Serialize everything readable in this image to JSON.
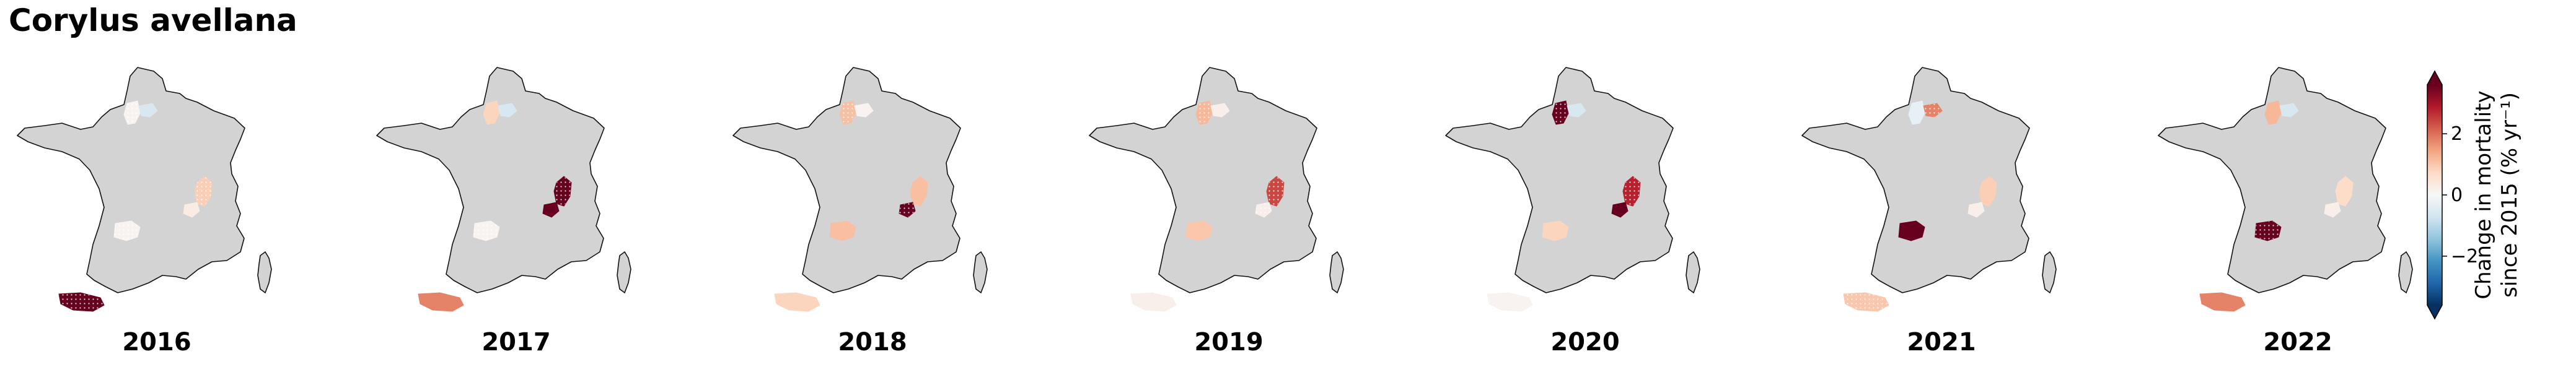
{
  "title": "Corylus avellana",
  "panels": [
    {
      "year": "2016",
      "regions": {
        "north": 0.1,
        "northeast": -0.6,
        "east": 0.9,
        "eastinner": 0.3,
        "center": 0.1,
        "southwest": 3.6
      },
      "hatched": [
        "north",
        "east",
        "center",
        "southwest"
      ]
    },
    {
      "year": "2017",
      "regions": {
        "north": 0.8,
        "northeast": -0.6,
        "east": 3.6,
        "eastinner": 3.6,
        "center": 0.1,
        "southwest": 1.8
      },
      "hatched": [
        "east",
        "center"
      ]
    },
    {
      "year": "2018",
      "regions": {
        "north": 1.1,
        "northeast": 0.1,
        "east": 1.1,
        "eastinner": 3.6,
        "center": 1.1,
        "southwest": 0.8
      },
      "hatched": [
        "north",
        "eastinner"
      ]
    },
    {
      "year": "2019",
      "regions": {
        "north": 1.2,
        "northeast": 0.2,
        "east": 2.4,
        "eastinner": 0.2,
        "center": 1.0,
        "southwest": 0.2
      },
      "hatched": [
        "north",
        "east",
        "eastinner"
      ]
    },
    {
      "year": "2020",
      "regions": {
        "north": 3.6,
        "northeast": -0.6,
        "east": 2.8,
        "eastinner": 3.6,
        "center": 0.8,
        "southwest": 0.1
      },
      "hatched": [
        "north",
        "east"
      ]
    },
    {
      "year": "2021",
      "regions": {
        "north": -0.3,
        "northeast": 1.8,
        "east": 0.9,
        "eastinner": 0.2,
        "center": 3.6,
        "southwest": 1.0
      },
      "hatched": [
        "northeast",
        "southwest"
      ]
    },
    {
      "year": "2022",
      "regions": {
        "north": 1.2,
        "northeast": -0.6,
        "east": 0.7,
        "eastinner": 0.2,
        "center": 3.6,
        "southwest": 1.8
      },
      "hatched": [
        "center"
      ]
    }
  ],
  "colorbar": {
    "ticks": [
      "2",
      "0",
      "−2"
    ],
    "label_line1": "Change in mortality",
    "label_line2": "since 2015 (% yr⁻¹)",
    "vmin": -3.6,
    "vmax": 3.6,
    "tick_values": [
      2,
      0,
      -2
    ]
  },
  "colors": {
    "land": "#d3d3d3",
    "cmap": [
      "#053061",
      "#2166ac",
      "#4393c3",
      "#92c5de",
      "#d1e5f0",
      "#f7f7f7",
      "#fddbc7",
      "#f4a582",
      "#d6604d",
      "#b2182b",
      "#67001f"
    ]
  }
}
